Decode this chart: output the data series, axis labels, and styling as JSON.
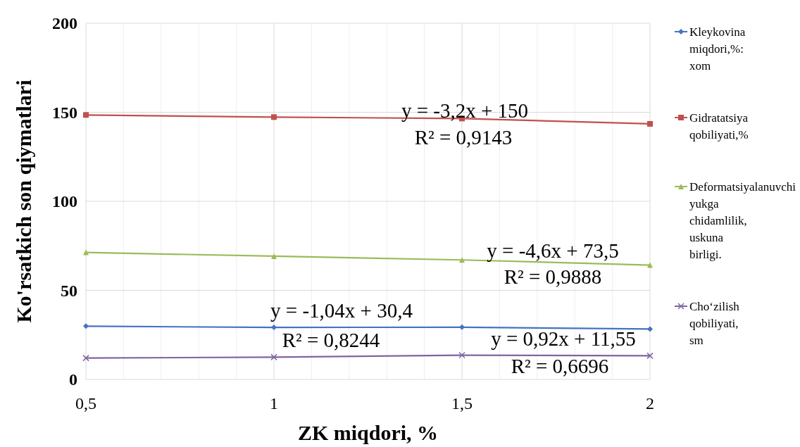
{
  "chart_data": {
    "type": "line",
    "xlabel": "ZK miqdori, %",
    "ylabel": "Ko'rsatkich son qiymatlari",
    "x": [
      0.5,
      1,
      1.5,
      2
    ],
    "xlim": [
      0.5,
      2
    ],
    "ylim": [
      0,
      200
    ],
    "xticks": [
      {
        "value": 0.5,
        "label": "0,5"
      },
      {
        "value": 0.6,
        "label": null
      },
      {
        "value": 0.7,
        "label": null
      },
      {
        "value": 0.8,
        "label": null
      },
      {
        "value": 0.9,
        "label": null
      },
      1,
      {
        "value": 1.1,
        "label": null
      },
      {
        "value": 1.2,
        "label": null
      },
      {
        "value": 1.3,
        "label": null
      },
      {
        "value": 1.4,
        "label": null
      },
      {
        "value": 1.5,
        "label": "1,5"
      },
      {
        "value": 1.6,
        "label": null
      },
      {
        "value": 1.7,
        "label": null
      },
      {
        "value": 1.8,
        "label": null
      },
      {
        "value": 1.9,
        "label": null
      },
      2
    ],
    "yticks": [
      0,
      50,
      100,
      150,
      200
    ],
    "grid": true,
    "legend": "right",
    "line_style": "solid",
    "series": [
      {
        "name": "Kleykovina miqdori,%: xom",
        "color": "#4472c4",
        "marker": "diamond",
        "values": [
          29.9,
          29.2,
          29.3,
          28.3
        ]
      },
      {
        "name": "Gidratatsiya qobiliyati,%",
        "color": "#c0504d",
        "marker": "square",
        "values": [
          148.5,
          147.3,
          146.5,
          143.5
        ]
      },
      {
        "name": "Deformatsiyalanuvchi yukga chidamlilik, uskuna birligi.",
        "color": "#9bbb59",
        "marker": "triangle",
        "values": [
          71.3,
          69.2,
          67.1,
          64.2
        ]
      },
      {
        "name": "Cho‘zilish qobiliyati, sm",
        "color": "#8064a2",
        "marker": "cross",
        "values": [
          12,
          12.5,
          13.6,
          13.3
        ]
      }
    ],
    "annotations": [
      "y = -3,2x + 150",
      "R² = 0,9143",
      "y = -4,6x + 73,5",
      "R² = 0,9888",
      "y = -1,04x + 30,4",
      "R² = 0,8244",
      "y = 0,92x + 11,55",
      "R² = 0,6696"
    ]
  }
}
